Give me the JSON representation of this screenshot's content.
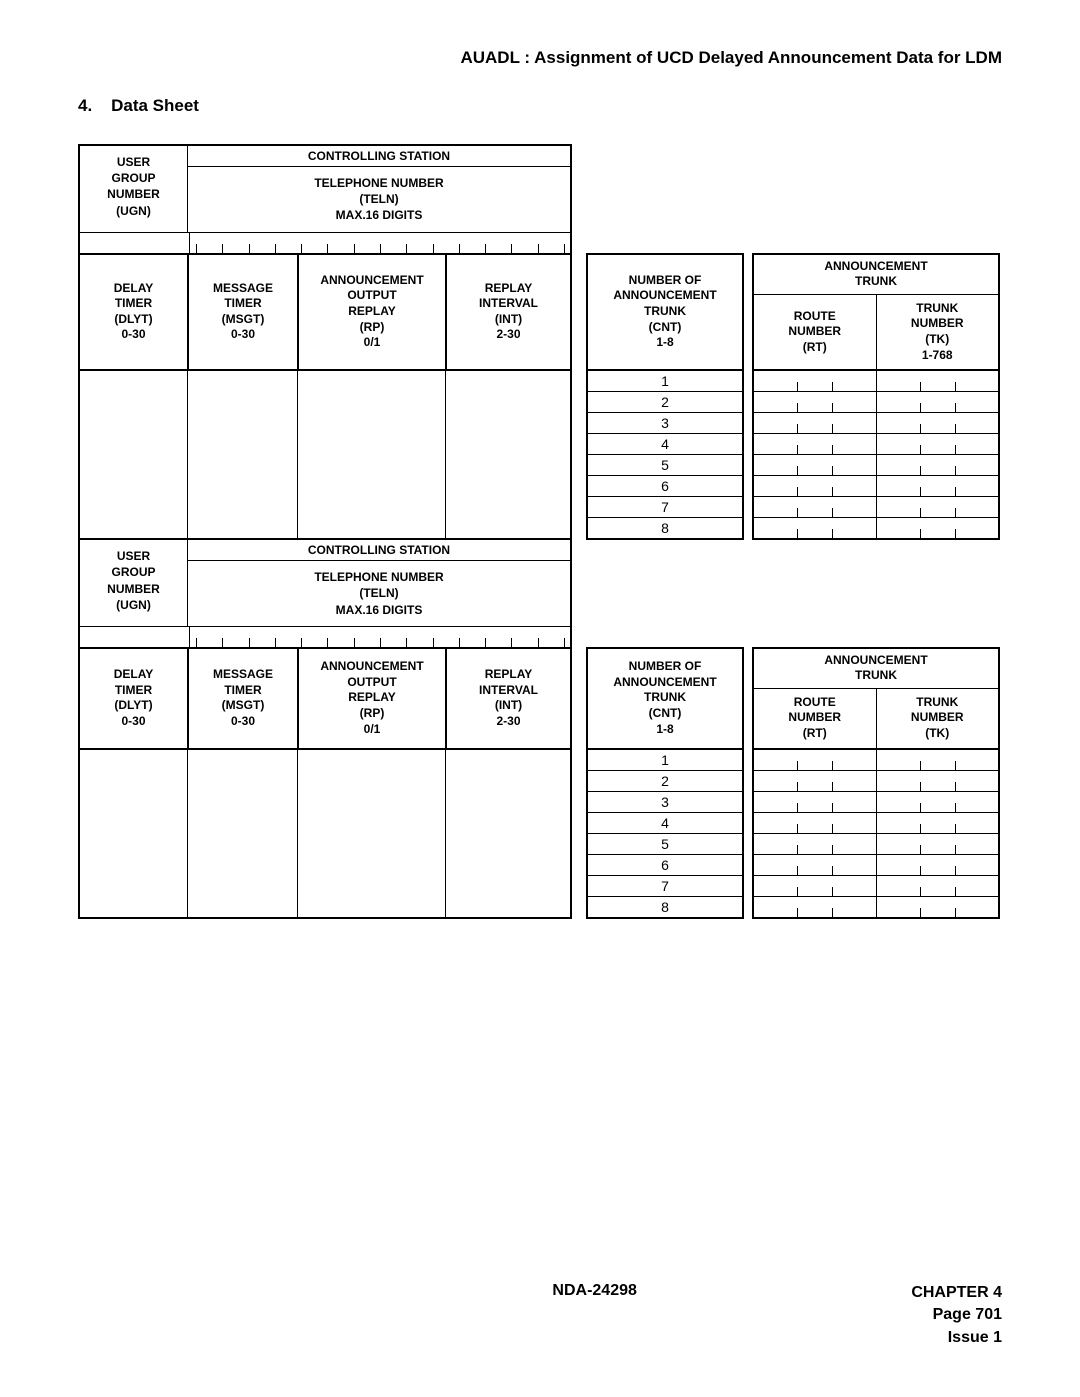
{
  "header": {
    "title": "AUADL : Assignment of UCD Delayed Announcement Data for LDM"
  },
  "section": {
    "number": "4.",
    "title": "Data Sheet"
  },
  "labels": {
    "controlling_station": "CONTROLLING STATION",
    "ugn": "USER\nGROUP\nNUMBER\n(UGN)",
    "teln": "TELEPHONE NUMBER\n(TELN)\nMAX.16  DIGITS",
    "dlyt": "DELAY\nTIMER\n(DLYT)\n0-30",
    "msgt": "MESSAGE\nTIMER\n(MSGT)\n0-30",
    "rp": "ANNOUNCEMENT\nOUTPUT\nREPLAY\n(RP)\n0/1",
    "int": "REPLAY\nINTERVAL\n(INT)\n2-30",
    "cnt": "NUMBER OF\nANNOUNCEMENT\nTRUNK\n(CNT)\n1-8",
    "ann_trunk": "ANNOUNCEMENT\nTRUNK",
    "rt": "ROUTE\nNUMBER\n(RT)",
    "tk1": "TRUNK\nNUMBER\n(TK)\n1-768",
    "tk2": "TRUNK\nNUMBER\n(TK)"
  },
  "rows": [
    "1",
    "2",
    "3",
    "4",
    "5",
    "6",
    "7",
    "8"
  ],
  "teln_tick_count": 15,
  "small_tick_count": 2,
  "footer": {
    "doc": "NDA-24298",
    "chapter": "CHAPTER 4",
    "page": "Page 701",
    "issue": "Issue 1"
  }
}
